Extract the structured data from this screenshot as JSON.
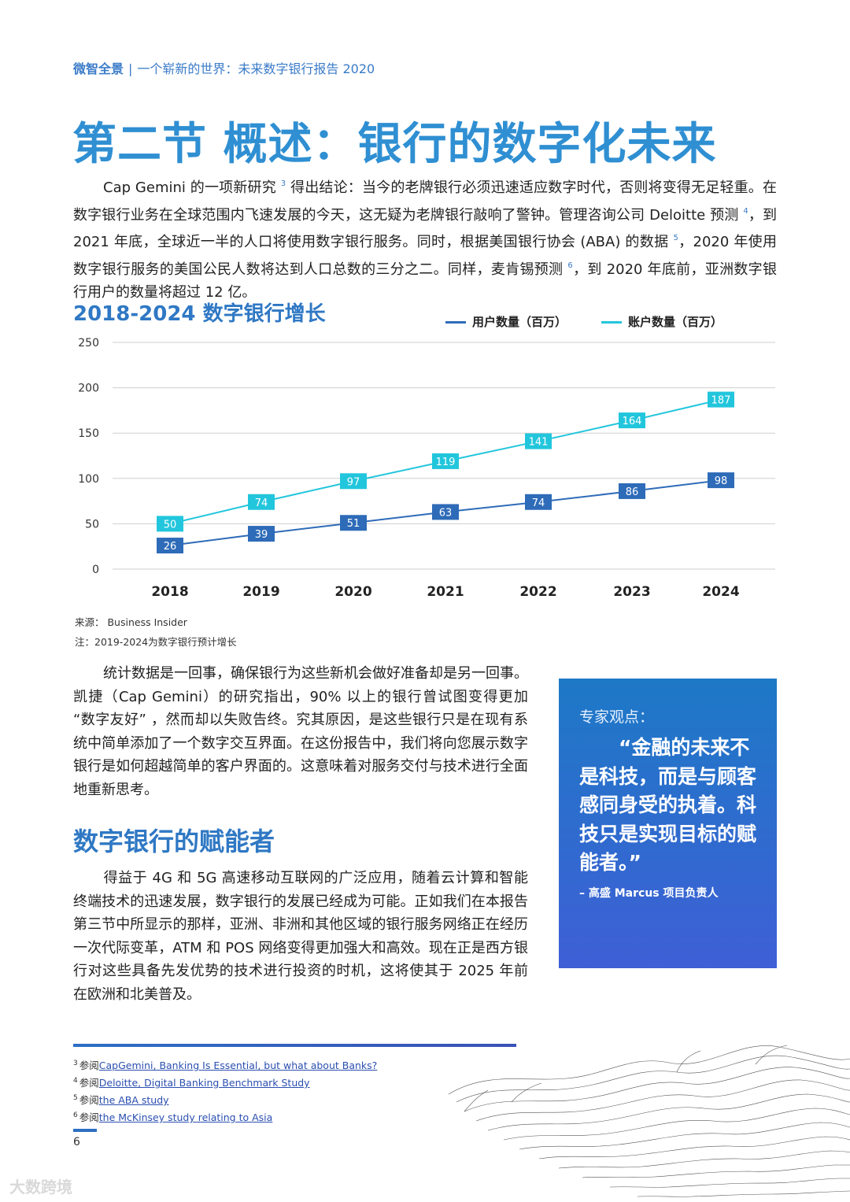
{
  "header": {
    "brand": "微智全景",
    "separator": "|",
    "subtitle": "一个崭新的世界：未来数字银行报告 2020"
  },
  "title": "第二节 概述：银行的数字化未来",
  "intro": {
    "seg1": "Cap Gemini 的一项新研究",
    "ref1": "3",
    "seg2": "得出结论：当今的老牌银行必须迅速适应数字时代，否则将变得无足轻重。在数字银行业务在全球范围内飞速发展的今天，这无疑为老牌银行敲响了警钟。管理咨询公司 Deloitte 预测",
    "ref2": "4",
    "seg3": "，到 2021 年底，全球近一半的人口将使用数字银行服务。同时，根据美国银行协会 (ABA) 的数据",
    "ref3": "5",
    "seg4": "，2020 年使用数字银行服务的美国公民人数将达到人口总数的三分之二。同样，麦肯锡预测",
    "ref4": "6",
    "seg5": "，到 2020 年底前，亚洲数字银行用户的数量将超过 12 亿。"
  },
  "chart_data": {
    "type": "line",
    "title": "2018-2024 数字银行增长",
    "categories": [
      "2018",
      "2019",
      "2020",
      "2021",
      "2022",
      "2023",
      "2024"
    ],
    "series": [
      {
        "name": "用户数量（百万）",
        "values": [
          26,
          39,
          51,
          63,
          74,
          86,
          98
        ],
        "color": "#2e6bb8"
      },
      {
        "name": "账户数量（百万）",
        "values": [
          50,
          74,
          97,
          119,
          141,
          164,
          187
        ],
        "color": "#22c6dc"
      }
    ],
    "ylim": [
      0,
      250
    ],
    "yticks": [
      "0",
      "50",
      "100",
      "150",
      "200",
      "250"
    ],
    "grid": true,
    "legend": "top-right"
  },
  "source": {
    "line1": "来源： Business Insider",
    "line2": "注：2019-2024为数字银行预计增长"
  },
  "body2": "统计数据是一回事，确保银行为这些新机会做好准备却是另一回事。凯捷（Cap Gemini）的研究指出，90% 以上的银行曾试图变得更加 “数字友好” ，然而却以失败告终。究其原因，是这些银行只是在现有系统中简单添加了一个数字交互界面。在这份报告中，我们将向您展示数字银行是如何超越简单的客户界面的。这意味着对服务交付与技术进行全面地重新思考。",
  "quote": {
    "label": "专家观点：",
    "text": "“金融的未来不是科技，而是与顾客感同身受的执着。科技只是实现目标的赋能者。”",
    "by": "– 高盛 Marcus 项目负责人"
  },
  "section2": {
    "heading": "数字银行的赋能者",
    "body": "得益于 4G 和 5G 高速移动互联网的广泛应用，随着云计算和智能终端技术的迅速发展，数字银行的发展已经成为可能。正如我们在本报告第三节中所显示的那样，亚洲、非洲和其他区域的银行服务网络正在经历一次代际变革，ATM 和 POS 网络变得更加强大和高效。现在正是西方银行对这些具备先发优势的技术进行投资的时机，这将使其于 2025 年前在欧洲和北美普及。"
  },
  "footnotes": [
    {
      "num": "3",
      "prefix": "参阅",
      "link": "CapGemini, Banking Is Essential, but what about Banks?"
    },
    {
      "num": "4",
      "prefix": "参阅",
      "link": "Deloitte, Digital Banking Benchmark Study"
    },
    {
      "num": "5",
      "prefix": "参阅",
      "link": "the ABA study"
    },
    {
      "num": "6",
      "prefix": "参阅",
      "link": "the McKinsey study relating to Asia"
    }
  ],
  "page_number": "6",
  "watermark": "大数跨境"
}
